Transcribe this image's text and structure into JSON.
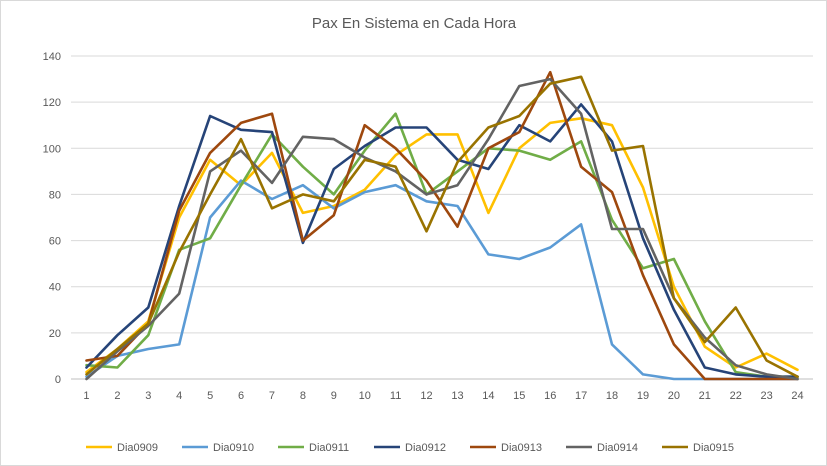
{
  "chart_data": {
    "type": "line",
    "title": "Pax En Sistema en Cada Hora",
    "xlabel": "",
    "ylabel": "",
    "x": [
      1,
      2,
      3,
      4,
      5,
      6,
      7,
      8,
      9,
      10,
      11,
      12,
      13,
      14,
      15,
      16,
      17,
      18,
      19,
      20,
      21,
      22,
      23,
      24
    ],
    "ylim": [
      0,
      140
    ],
    "yticks": [
      0,
      20,
      40,
      60,
      80,
      100,
      120,
      140
    ],
    "grid": true,
    "legend_position": "bottom",
    "series": [
      {
        "name": "Dia0909",
        "color": "#FFC000",
        "values": [
          3,
          13,
          25,
          70,
          95,
          84,
          98,
          72,
          75,
          82,
          97,
          106,
          106,
          72,
          100,
          111,
          113,
          110,
          83,
          40,
          14,
          5,
          11,
          4
        ]
      },
      {
        "name": "Dia0910",
        "color": "#5B9BD5",
        "values": [
          1,
          10,
          13,
          15,
          70,
          86,
          78,
          84,
          74,
          81,
          84,
          77,
          75,
          54,
          52,
          57,
          67,
          15,
          2,
          0,
          0,
          0,
          0,
          0
        ]
      },
      {
        "name": "Dia0911",
        "color": "#70AD47",
        "values": [
          6,
          5,
          19,
          56,
          61,
          84,
          106,
          92,
          80,
          99,
          115,
          80,
          90,
          100,
          99,
          95,
          103,
          69,
          48,
          52,
          25,
          3,
          1,
          1
        ]
      },
      {
        "name": "Dia0912",
        "color": "#264478",
        "values": [
          5,
          19,
          31,
          75,
          114,
          108,
          107,
          59,
          91,
          101,
          109,
          109,
          95,
          91,
          110,
          103,
          119,
          103,
          61,
          30,
          5,
          2,
          1,
          1
        ]
      },
      {
        "name": "Dia0913",
        "color": "#9E480E",
        "values": [
          8,
          10,
          24,
          73,
          98,
          111,
          115,
          60,
          71,
          110,
          100,
          86,
          66,
          100,
          107,
          133,
          92,
          81,
          45,
          15,
          0,
          0,
          0,
          0
        ]
      },
      {
        "name": "Dia0914",
        "color": "#636363",
        "values": [
          0,
          12,
          23,
          37,
          90,
          99,
          85,
          105,
          104,
          96,
          90,
          80,
          84,
          104,
          127,
          130,
          115,
          65,
          65,
          35,
          18,
          6,
          2,
          0
        ]
      },
      {
        "name": "Dia0915",
        "color": "#997300",
        "values": [
          2,
          13,
          24,
          55,
          80,
          104,
          74,
          80,
          77,
          95,
          92,
          64,
          94,
          109,
          114,
          128,
          131,
          99,
          101,
          35,
          16,
          31,
          8,
          1
        ]
      }
    ]
  }
}
